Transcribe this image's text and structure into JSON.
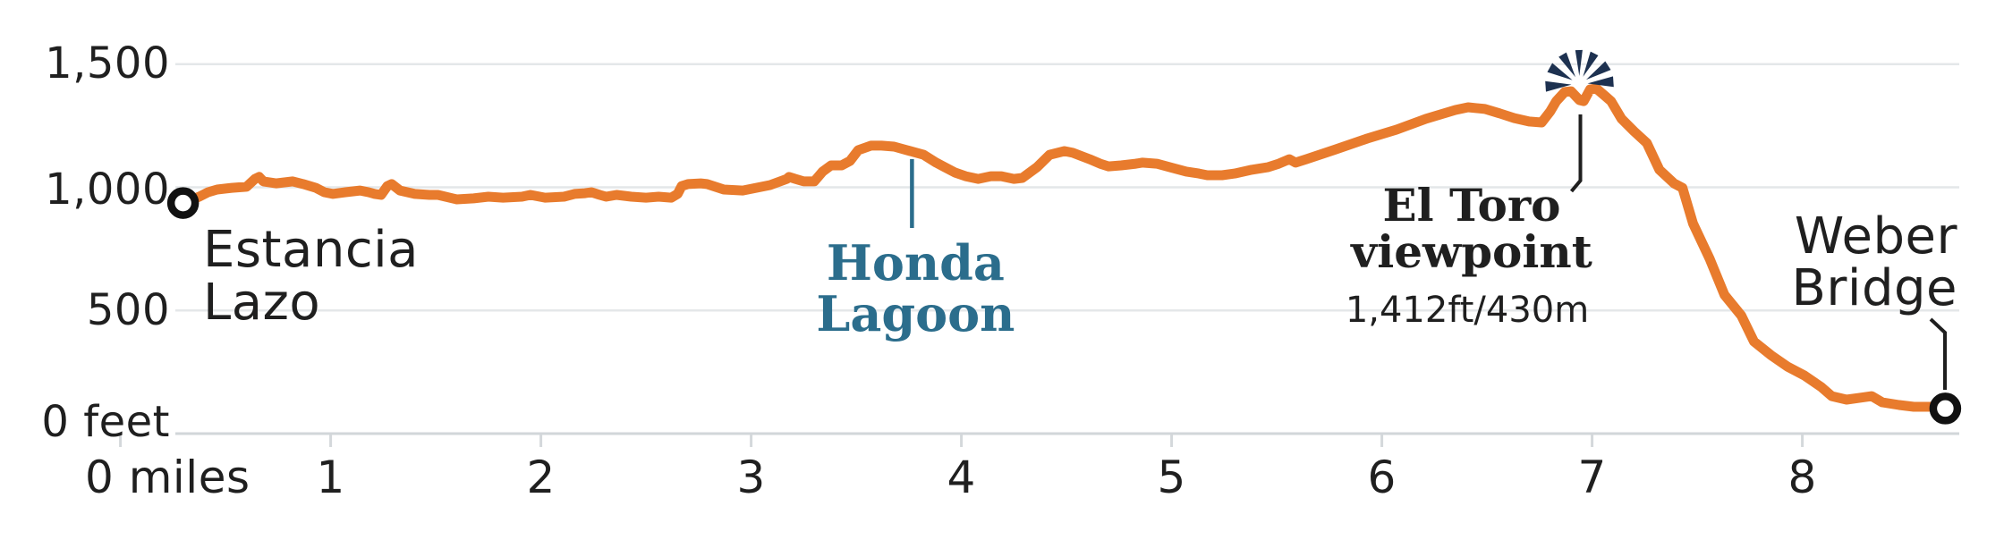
{
  "chart_data": {
    "type": "line",
    "title": "",
    "xlabel": "miles",
    "ylabel": "feet",
    "xlim": [
      0,
      8.75
    ],
    "ylim": [
      0,
      1500
    ],
    "grid": "horizontal",
    "colors": {
      "line": "#e87b2d",
      "grid": "#e4e7e9",
      "baseline": "#d2d6d9",
      "tick": "#d4d8db",
      "text": "#1f1f1f",
      "poi_blue": "#2b6d8c",
      "starburst_navy": "#1d3150",
      "marker_ring": "#111111",
      "background": "#ffffff"
    },
    "y_ticks": [
      {
        "value": 0,
        "label": "0 feet"
      },
      {
        "value": 500,
        "label": "500"
      },
      {
        "value": 1000,
        "label": "1,000"
      },
      {
        "value": 1500,
        "label": "1,500"
      }
    ],
    "x_ticks": [
      {
        "value": 0,
        "label": "0 miles"
      },
      {
        "value": 1,
        "label": "1"
      },
      {
        "value": 2,
        "label": "2"
      },
      {
        "value": 3,
        "label": "3"
      },
      {
        "value": 4,
        "label": "4"
      },
      {
        "value": 5,
        "label": "5"
      },
      {
        "value": 6,
        "label": "6"
      },
      {
        "value": 7,
        "label": "7"
      },
      {
        "value": 8,
        "label": "8"
      }
    ],
    "series": [
      {
        "name": "elevation-profile",
        "units": [
          "mile",
          "feet"
        ],
        "points": [
          [
            0.298,
            936
          ],
          [
            0.375,
            962
          ],
          [
            0.417,
            980
          ],
          [
            0.46,
            991
          ],
          [
            0.53,
            998
          ],
          [
            0.6,
            1002
          ],
          [
            0.64,
            1034
          ],
          [
            0.66,
            1042
          ],
          [
            0.68,
            1024
          ],
          [
            0.74,
            1016
          ],
          [
            0.82,
            1024
          ],
          [
            0.87,
            1013
          ],
          [
            0.93,
            998
          ],
          [
            0.97,
            980
          ],
          [
            1.01,
            973
          ],
          [
            1.07,
            980
          ],
          [
            1.14,
            987
          ],
          [
            1.18,
            980
          ],
          [
            1.21,
            973
          ],
          [
            1.24,
            969
          ],
          [
            1.27,
            1005
          ],
          [
            1.29,
            1013
          ],
          [
            1.33,
            987
          ],
          [
            1.4,
            973
          ],
          [
            1.47,
            969
          ],
          [
            1.51,
            969
          ],
          [
            1.6,
            951
          ],
          [
            1.68,
            955
          ],
          [
            1.75,
            962
          ],
          [
            1.82,
            958
          ],
          [
            1.91,
            962
          ],
          [
            1.95,
            969
          ],
          [
            2.02,
            958
          ],
          [
            2.11,
            962
          ],
          [
            2.16,
            973
          ],
          [
            2.21,
            976
          ],
          [
            2.24,
            980
          ],
          [
            2.28,
            969
          ],
          [
            2.31,
            962
          ],
          [
            2.36,
            969
          ],
          [
            2.43,
            962
          ],
          [
            2.5,
            958
          ],
          [
            2.56,
            962
          ],
          [
            2.62,
            958
          ],
          [
            2.65,
            973
          ],
          [
            2.67,
            1005
          ],
          [
            2.7,
            1013
          ],
          [
            2.76,
            1016
          ],
          [
            2.79,
            1013
          ],
          [
            2.87,
            991
          ],
          [
            2.96,
            987
          ],
          [
            3.09,
            1009
          ],
          [
            3.17,
            1034
          ],
          [
            3.18,
            1042
          ],
          [
            3.21,
            1034
          ],
          [
            3.25,
            1024
          ],
          [
            3.3,
            1024
          ],
          [
            3.34,
            1064
          ],
          [
            3.38,
            1089
          ],
          [
            3.43,
            1089
          ],
          [
            3.47,
            1107
          ],
          [
            3.51,
            1151
          ],
          [
            3.57,
            1169
          ],
          [
            3.62,
            1169
          ],
          [
            3.68,
            1165
          ],
          [
            3.74,
            1151
          ],
          [
            3.82,
            1132
          ],
          [
            3.88,
            1100
          ],
          [
            3.92,
            1082
          ],
          [
            3.97,
            1060
          ],
          [
            4.02,
            1045
          ],
          [
            4.08,
            1034
          ],
          [
            4.14,
            1045
          ],
          [
            4.19,
            1045
          ],
          [
            4.25,
            1034
          ],
          [
            4.29,
            1038
          ],
          [
            4.36,
            1082
          ],
          [
            4.42,
            1132
          ],
          [
            4.49,
            1147
          ],
          [
            4.53,
            1140
          ],
          [
            4.61,
            1114
          ],
          [
            4.66,
            1096
          ],
          [
            4.7,
            1085
          ],
          [
            4.76,
            1089
          ],
          [
            4.83,
            1096
          ],
          [
            4.86,
            1100
          ],
          [
            4.93,
            1096
          ],
          [
            4.99,
            1082
          ],
          [
            5.07,
            1064
          ],
          [
            5.13,
            1056
          ],
          [
            5.17,
            1049
          ],
          [
            5.24,
            1049
          ],
          [
            5.3,
            1056
          ],
          [
            5.38,
            1071
          ],
          [
            5.46,
            1082
          ],
          [
            5.51,
            1096
          ],
          [
            5.56,
            1114
          ],
          [
            5.59,
            1100
          ],
          [
            5.64,
            1114
          ],
          [
            5.78,
            1154
          ],
          [
            5.93,
            1198
          ],
          [
            6.07,
            1234
          ],
          [
            6.21,
            1278
          ],
          [
            6.35,
            1314
          ],
          [
            6.41,
            1325
          ],
          [
            6.49,
            1318
          ],
          [
            6.56,
            1300
          ],
          [
            6.63,
            1281
          ],
          [
            6.7,
            1267
          ],
          [
            6.76,
            1263
          ],
          [
            6.8,
            1307
          ],
          [
            6.83,
            1350
          ],
          [
            6.87,
            1387
          ],
          [
            6.9,
            1390
          ],
          [
            6.94,
            1354
          ],
          [
            6.96,
            1350
          ],
          [
            6.99,
            1397
          ],
          [
            7.02,
            1401
          ],
          [
            7.06,
            1372
          ],
          [
            7.09,
            1350
          ],
          [
            7.14,
            1278
          ],
          [
            7.2,
            1227
          ],
          [
            7.26,
            1180
          ],
          [
            7.32,
            1071
          ],
          [
            7.39,
            1016
          ],
          [
            7.43,
            998
          ],
          [
            7.48,
            853
          ],
          [
            7.56,
            708
          ],
          [
            7.63,
            563
          ],
          [
            7.71,
            479
          ],
          [
            7.77,
            374
          ],
          [
            7.85,
            319
          ],
          [
            7.93,
            272
          ],
          [
            8.01,
            236
          ],
          [
            8.09,
            189
          ],
          [
            8.14,
            152
          ],
          [
            8.21,
            138
          ],
          [
            8.27,
            145
          ],
          [
            8.33,
            152
          ],
          [
            8.38,
            127
          ],
          [
            8.46,
            116
          ],
          [
            8.53,
            109
          ],
          [
            8.61,
            109
          ],
          [
            8.68,
            102
          ]
        ]
      }
    ],
    "annotations": [
      {
        "id": "start",
        "lines": [
          "Estancia",
          "Lazo"
        ],
        "mile": 0.298,
        "feet": 936,
        "marker": "circle",
        "align": "start"
      },
      {
        "id": "honda-lagoon",
        "lines": [
          "Honda",
          "Lagoon"
        ],
        "mile": 3.765,
        "marker": "tick",
        "align": "middle"
      },
      {
        "id": "el-toro",
        "lines": [
          "El Toro",
          "viewpoint"
        ],
        "sub": "1,412ft/430m",
        "mile": 6.94,
        "feet": 1412,
        "marker": "starburst",
        "align": "middle"
      },
      {
        "id": "end",
        "lines": [
          "Weber",
          "Bridge"
        ],
        "mile": 8.68,
        "feet": 102,
        "marker": "circle",
        "align": "end"
      }
    ]
  }
}
